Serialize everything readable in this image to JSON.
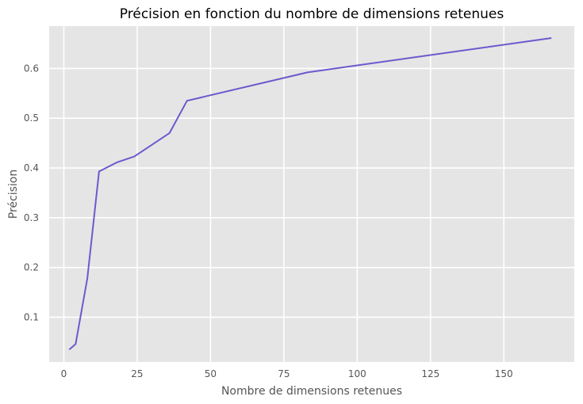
{
  "chart_data": {
    "type": "line",
    "title": "Précision en fonction du nombre de dimensions retenues",
    "xlabel": "Nombre de dimensions retenues",
    "ylabel": "Précision",
    "xlim": [
      -5,
      174
    ],
    "ylim": [
      0.01,
      0.685
    ],
    "xticks": [
      0,
      25,
      50,
      75,
      100,
      125,
      150
    ],
    "xtick_labels": [
      "0",
      "25",
      "50",
      "75",
      "100",
      "125",
      "150"
    ],
    "yticks": [
      0.1,
      0.2,
      0.3,
      0.4,
      0.5,
      0.6
    ],
    "ytick_labels": [
      "0.1",
      "0.2",
      "0.3",
      "0.4",
      "0.5",
      "0.6"
    ],
    "grid": true,
    "background_color": "#e5e5e5",
    "grid_color": "#ffffff",
    "series": [
      {
        "name": "Précision",
        "color": "#6a5acd",
        "x": [
          2,
          4,
          8,
          12,
          18,
          24,
          36,
          42,
          83,
          166
        ],
        "y": [
          0.036,
          0.046,
          0.178,
          0.393,
          0.411,
          0.423,
          0.47,
          0.535,
          0.592,
          0.661
        ]
      }
    ]
  }
}
